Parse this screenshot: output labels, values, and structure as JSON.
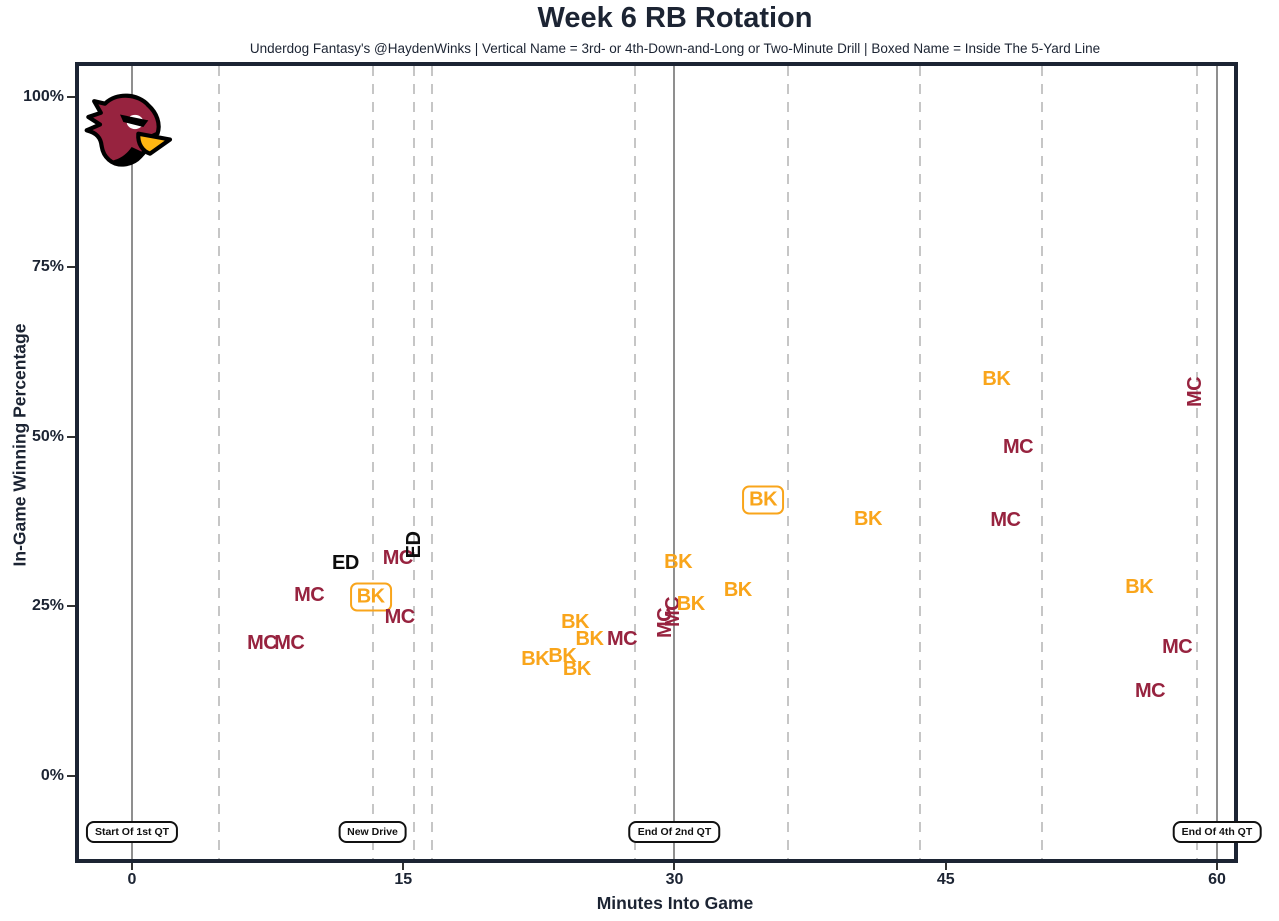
{
  "title": "Week 6 RB Rotation",
  "subtitle": "Underdog Fantasy's @HaydenWinks | Vertical Name = 3rd- or 4th-Down-and-Long or Two-Minute Drill | Boxed Name = Inside The 5-Yard Line",
  "logo": {
    "name": "arizona-cardinals-logo",
    "head_color": "#97233F",
    "beak_color": "#FFB612",
    "outline_color": "#000000",
    "eye_color": "#ffffff"
  },
  "colors": {
    "MC": "#97233F",
    "BK": "#F9A51B",
    "ED": "#0d0d0d",
    "axis_text": "#1c2433",
    "plot_border": "#1c2433",
    "solid_line": "#8f8f8f",
    "dashed_line": "#c6c6c6"
  },
  "chart_data": {
    "type": "scatter",
    "title": "Week 6 RB Rotation",
    "xlabel": "Minutes Into Game",
    "ylabel": "In-Game Winning Percentage",
    "xlim": [
      -3.2,
      61.3
    ],
    "ylim": [
      -12.5,
      104.5
    ],
    "x_ticks": [
      0,
      15,
      30,
      45,
      60
    ],
    "y_ticks": [
      {
        "value": 0,
        "label": "0%"
      },
      {
        "value": 25,
        "label": "25%"
      },
      {
        "value": 50,
        "label": "50%"
      },
      {
        "value": 75,
        "label": "75%"
      },
      {
        "value": 100,
        "label": "100%"
      }
    ],
    "grid": "vertical-only",
    "legend": "none",
    "solid_vlines": [
      0,
      30,
      60
    ],
    "dashed_vlines": [
      4.8,
      13.3,
      15.6,
      16.6,
      27.8,
      36.3,
      43.6,
      50.3,
      58.9
    ],
    "annotations": [
      {
        "x": 0,
        "label": "Start Of 1st QT"
      },
      {
        "x": 13.3,
        "label": "New Drive"
      },
      {
        "x": 30,
        "label": "End Of 2nd QT"
      },
      {
        "x": 60,
        "label": "End Of 4th QT"
      }
    ],
    "points": [
      {
        "player": "MC",
        "x": 7.2,
        "y": 19.6,
        "rotated": false,
        "boxed": false
      },
      {
        "player": "MC",
        "x": 8.7,
        "y": 19.6,
        "rotated": false,
        "boxed": false
      },
      {
        "player": "MC",
        "x": 9.8,
        "y": 26.7,
        "rotated": false,
        "boxed": false
      },
      {
        "player": "ED",
        "x": 11.8,
        "y": 31.4,
        "rotated": false,
        "boxed": false
      },
      {
        "player": "BK",
        "x": 13.2,
        "y": 26.4,
        "rotated": false,
        "boxed": true
      },
      {
        "player": "MC",
        "x": 14.7,
        "y": 32.1,
        "rotated": false,
        "boxed": false
      },
      {
        "player": "MC",
        "x": 14.8,
        "y": 23.4,
        "rotated": false,
        "boxed": false
      },
      {
        "player": "ED",
        "x": 15.6,
        "y": 34.0,
        "rotated": true,
        "boxed": false
      },
      {
        "player": "BK",
        "x": 22.3,
        "y": 17.2,
        "rotated": false,
        "boxed": false
      },
      {
        "player": "BK",
        "x": 23.8,
        "y": 17.7,
        "rotated": false,
        "boxed": false
      },
      {
        "player": "BK",
        "x": 24.5,
        "y": 22.7,
        "rotated": false,
        "boxed": false
      },
      {
        "player": "BK",
        "x": 24.6,
        "y": 15.8,
        "rotated": false,
        "boxed": false
      },
      {
        "player": "BK",
        "x": 25.3,
        "y": 20.2,
        "rotated": false,
        "boxed": false
      },
      {
        "player": "MC",
        "x": 27.1,
        "y": 20.2,
        "rotated": false,
        "boxed": false
      },
      {
        "player": "MC",
        "x": 29.5,
        "y": 22.5,
        "rotated": true,
        "boxed": false
      },
      {
        "player": "MC",
        "x": 29.9,
        "y": 24.2,
        "rotated": true,
        "boxed": false
      },
      {
        "player": "BK",
        "x": 30.2,
        "y": 31.5,
        "rotated": false,
        "boxed": false
      },
      {
        "player": "BK",
        "x": 30.9,
        "y": 25.3,
        "rotated": false,
        "boxed": false
      },
      {
        "player": "BK",
        "x": 33.5,
        "y": 27.4,
        "rotated": false,
        "boxed": false
      },
      {
        "player": "BK",
        "x": 34.9,
        "y": 40.6,
        "rotated": false,
        "boxed": true
      },
      {
        "player": "BK",
        "x": 40.7,
        "y": 37.8,
        "rotated": false,
        "boxed": false
      },
      {
        "player": "BK",
        "x": 47.8,
        "y": 58.5,
        "rotated": false,
        "boxed": false
      },
      {
        "player": "MC",
        "x": 48.3,
        "y": 37.7,
        "rotated": false,
        "boxed": false
      },
      {
        "player": "MC",
        "x": 49.0,
        "y": 48.5,
        "rotated": false,
        "boxed": false
      },
      {
        "player": "BK",
        "x": 55.7,
        "y": 27.8,
        "rotated": false,
        "boxed": false
      },
      {
        "player": "MC",
        "x": 56.3,
        "y": 12.5,
        "rotated": false,
        "boxed": false
      },
      {
        "player": "MC",
        "x": 57.8,
        "y": 19.0,
        "rotated": false,
        "boxed": false
      },
      {
        "player": "MC",
        "x": 58.8,
        "y": 56.6,
        "rotated": true,
        "boxed": false
      }
    ]
  }
}
